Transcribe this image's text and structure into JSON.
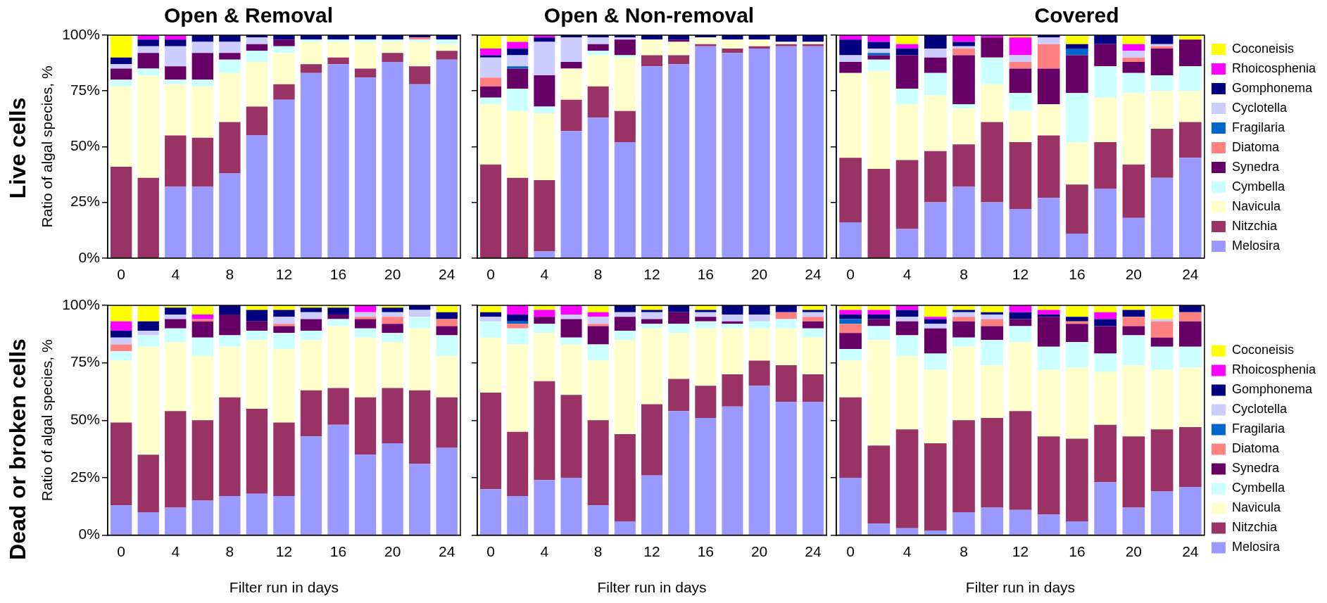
{
  "chart_data": [
    {
      "type": "bar",
      "title": "Open & Removal",
      "ylabel": "Ratio of algal species, %",
      "annotations": [
        "Live cells"
      ],
      "stacked": true,
      "categories": [
        "0",
        null,
        "4",
        null,
        "8",
        null,
        "12",
        null,
        "16",
        null,
        "20",
        null,
        "24"
      ],
      "ylim": [
        0,
        100
      ],
      "yticks": [
        {
          "value": 0,
          "label": "0%"
        },
        {
          "value": 25,
          "label": "25%"
        },
        {
          "value": 50,
          "label": "50%"
        },
        {
          "value": 75,
          "label": "75%"
        },
        {
          "value": 100,
          "label": "100%"
        }
      ],
      "series": [
        {
          "color": "#9999ff",
          "values": [
            0,
            0,
            32,
            32,
            38,
            55,
            71,
            83,
            87,
            81,
            88,
            78,
            89
          ]
        },
        {
          "color": "#993366",
          "values": [
            41,
            36,
            23,
            22,
            23,
            13,
            7,
            4,
            3,
            4,
            4,
            8,
            4
          ]
        },
        {
          "color": "#ffffcc",
          "values": [
            36,
            46,
            23,
            23,
            22,
            20,
            14,
            10,
            7,
            12,
            5,
            11,
            3
          ]
        },
        {
          "color": "#ccffff",
          "values": [
            3,
            3,
            2,
            3,
            6,
            5,
            3,
            1,
            1,
            1,
            1,
            1,
            2
          ]
        },
        {
          "color": "#660066",
          "values": [
            5,
            7,
            6,
            12,
            3,
            3,
            3,
            0,
            0,
            0,
            0,
            0,
            0
          ]
        },
        {
          "color": "#ff8080",
          "values": [
            0,
            0,
            0,
            0,
            0,
            0,
            0,
            0,
            0,
            0,
            0,
            1,
            0
          ]
        },
        {
          "color": "#ccccff",
          "values": [
            2,
            3,
            9,
            5,
            5,
            3,
            0,
            0,
            0,
            0,
            0,
            0,
            0
          ]
        },
        {
          "color": "#000080",
          "values": [
            3,
            3,
            3,
            3,
            3,
            1,
            2,
            2,
            2,
            2,
            2,
            1,
            2
          ]
        },
        {
          "color": "#ff00ff",
          "values": [
            0,
            2,
            2,
            0,
            0,
            0,
            0,
            0,
            0,
            0,
            0,
            0,
            0
          ]
        },
        {
          "color": "#ffff00",
          "values": [
            10,
            0,
            0,
            0,
            0,
            0,
            0,
            0,
            0,
            0,
            0,
            0,
            0
          ]
        }
      ]
    },
    {
      "type": "bar",
      "title": "Open & Non-removal",
      "stacked": true,
      "categories": [
        "0",
        null,
        "4",
        null,
        "8",
        null,
        "12",
        null,
        "16",
        null,
        "20",
        null,
        "24"
      ],
      "ylim": [
        0,
        100
      ],
      "yticks": [
        {
          "value": 0,
          "label": null
        },
        {
          "value": 25,
          "label": null
        },
        {
          "value": 50,
          "label": null
        },
        {
          "value": 75,
          "label": null
        },
        {
          "value": 100,
          "label": null
        }
      ],
      "tick_labels": "x",
      "series": [
        {
          "color": "#9999ff",
          "values": [
            0,
            0,
            3,
            57,
            63,
            52,
            86,
            87,
            95,
            92,
            94,
            95,
            95
          ]
        },
        {
          "color": "#993366",
          "values": [
            42,
            36,
            32,
            14,
            14,
            14,
            5,
            4,
            1,
            2,
            1,
            1,
            1
          ]
        },
        {
          "color": "#ffffcc",
          "values": [
            27,
            30,
            30,
            14,
            14,
            24,
            7,
            6,
            3,
            4,
            3,
            1,
            1
          ]
        },
        {
          "color": "#ccffff",
          "values": [
            3,
            10,
            3,
            0,
            2,
            1,
            0,
            0,
            0,
            0,
            0,
            0,
            0
          ]
        },
        {
          "color": "#660066",
          "values": [
            5,
            9,
            14,
            3,
            3,
            7,
            0,
            1,
            0,
            0,
            0,
            0,
            0
          ]
        },
        {
          "color": "#ff8080",
          "values": [
            4,
            0,
            0,
            0,
            0,
            0,
            0,
            0,
            0,
            0,
            0,
            0,
            0
          ]
        },
        {
          "color": "#0066cc",
          "values": [
            0,
            1,
            0,
            0,
            0,
            0,
            0,
            0,
            0,
            0,
            0,
            0,
            0
          ]
        },
        {
          "color": "#ccccff",
          "values": [
            9,
            5,
            15,
            11,
            3,
            1,
            0,
            0,
            0,
            0,
            0,
            0,
            0
          ]
        },
        {
          "color": "#000080",
          "values": [
            1,
            3,
            2,
            1,
            1,
            1,
            2,
            2,
            1,
            2,
            2,
            3,
            3
          ]
        },
        {
          "color": "#ff00ff",
          "values": [
            3,
            3,
            1,
            0,
            0,
            0,
            0,
            0,
            0,
            0,
            0,
            0,
            0
          ]
        },
        {
          "color": "#ffff00",
          "values": [
            6,
            3,
            0,
            0,
            0,
            0,
            0,
            0,
            0,
            0,
            0,
            0,
            0
          ]
        }
      ]
    },
    {
      "type": "bar",
      "title": "Covered",
      "stacked": true,
      "legend": "right",
      "categories": [
        "0",
        null,
        "4",
        null,
        "8",
        null,
        "12",
        null,
        "16",
        null,
        "20",
        null,
        "24"
      ],
      "ylim": [
        0,
        100
      ],
      "yticks": [
        {
          "value": 0,
          "label": null
        },
        {
          "value": 25,
          "label": null
        },
        {
          "value": 50,
          "label": null
        },
        {
          "value": 75,
          "label": null
        },
        {
          "value": 100,
          "label": null
        }
      ],
      "tick_labels": "x",
      "series": [
        {
          "name": "Melosira",
          "color": "#9999ff",
          "values": [
            16,
            0,
            13,
            25,
            32,
            25,
            22,
            27,
            11,
            31,
            18,
            36,
            45
          ]
        },
        {
          "name": "Nitzchia",
          "color": "#993366",
          "values": [
            29,
            40,
            31,
            23,
            19,
            36,
            30,
            28,
            22,
            21,
            24,
            22,
            16
          ]
        },
        {
          "name": "Navicula",
          "color": "#ffffcc",
          "values": [
            38,
            44,
            25,
            25,
            16,
            17,
            14,
            14,
            19,
            20,
            32,
            17,
            14
          ]
        },
        {
          "name": "Cymbella",
          "color": "#ccffff",
          "values": [
            0,
            5,
            7,
            10,
            2,
            12,
            8,
            0,
            22,
            14,
            9,
            7,
            11
          ]
        },
        {
          "name": "Synedra",
          "color": "#660066",
          "values": [
            5,
            2,
            15,
            7,
            22,
            9,
            11,
            16,
            17,
            10,
            5,
            12,
            12
          ]
        },
        {
          "name": "Diatoma",
          "color": "#ff8080",
          "values": [
            0,
            0,
            0,
            0,
            3,
            0,
            3,
            11,
            0,
            0,
            2,
            1,
            0
          ]
        },
        {
          "name": "Fragilaria",
          "color": "#0066cc",
          "values": [
            0,
            1,
            0,
            0,
            0,
            0,
            0,
            0,
            3,
            0,
            0,
            0,
            0
          ]
        },
        {
          "name": "Cyclotella",
          "color": "#ccccff",
          "values": [
            3,
            2,
            0,
            4,
            1,
            0,
            3,
            3,
            0,
            0,
            3,
            1,
            0
          ]
        },
        {
          "name": "Gomphonema",
          "color": "#000080",
          "values": [
            7,
            3,
            3,
            6,
            2,
            0,
            0,
            1,
            2,
            4,
            0,
            4,
            0
          ]
        },
        {
          "name": "Rhoicosphenia",
          "color": "#ff00ff",
          "values": [
            2,
            3,
            2,
            0,
            3,
            1,
            8,
            0,
            0,
            0,
            3,
            0,
            0
          ]
        },
        {
          "name": "Coconeisis",
          "color": "#ffff00",
          "values": [
            0,
            0,
            4,
            0,
            0,
            0,
            1,
            0,
            4,
            0,
            4,
            0,
            2
          ]
        }
      ]
    },
    {
      "type": "bar",
      "xlabel": "Filter run in days",
      "ylabel": "Ratio of algal species, %",
      "annotations": [
        "Dead or broken cells"
      ],
      "stacked": true,
      "categories": [
        "0",
        null,
        "4",
        null,
        "8",
        null,
        "12",
        null,
        "16",
        null,
        "20",
        null,
        "24"
      ],
      "ylim": [
        0,
        100
      ],
      "yticks": [
        {
          "value": 0,
          "label": "0%"
        },
        {
          "value": 25,
          "label": "25%"
        },
        {
          "value": 50,
          "label": "50%"
        },
        {
          "value": 75,
          "label": "75%"
        },
        {
          "value": 100,
          "label": "100%"
        }
      ],
      "series": [
        {
          "color": "#9999ff",
          "values": [
            13,
            10,
            12,
            15,
            17,
            18,
            17,
            43,
            48,
            35,
            40,
            31,
            38
          ]
        },
        {
          "color": "#993366",
          "values": [
            36,
            25,
            42,
            35,
            43,
            37,
            32,
            20,
            16,
            25,
            24,
            32,
            22
          ]
        },
        {
          "color": "#ffffcc",
          "values": [
            27,
            47,
            30,
            28,
            22,
            30,
            32,
            22,
            27,
            26,
            20,
            27,
            18
          ]
        },
        {
          "color": "#ccffff",
          "values": [
            4,
            5,
            6,
            8,
            5,
            4,
            7,
            4,
            3,
            4,
            4,
            5,
            9
          ]
        },
        {
          "color": "#660066",
          "values": [
            0,
            0,
            4,
            7,
            9,
            4,
            3,
            5,
            2,
            4,
            4,
            0,
            4
          ]
        },
        {
          "color": "#ff8080",
          "values": [
            3,
            0,
            0,
            1,
            0,
            0,
            1,
            0,
            0,
            1,
            3,
            0,
            3
          ]
        },
        {
          "color": "#ccccff",
          "values": [
            3,
            2,
            2,
            0,
            0,
            0,
            3,
            3,
            0,
            2,
            2,
            3,
            0
          ]
        },
        {
          "color": "#000080",
          "values": [
            3,
            4,
            3,
            0,
            4,
            5,
            3,
            2,
            3,
            0,
            2,
            2,
            3
          ]
        },
        {
          "color": "#ff00ff",
          "values": [
            4,
            0,
            0,
            2,
            0,
            0,
            0,
            0,
            0,
            3,
            0,
            0,
            0
          ]
        },
        {
          "color": "#ffff00",
          "values": [
            7,
            7,
            1,
            4,
            0,
            2,
            2,
            1,
            1,
            0,
            1,
            0,
            3
          ]
        }
      ]
    },
    {
      "type": "bar",
      "xlabel": "Filter run in days",
      "stacked": true,
      "categories": [
        "0",
        null,
        "4",
        null,
        "8",
        null,
        "12",
        null,
        "16",
        null,
        "20",
        null,
        "24"
      ],
      "ylim": [
        0,
        100
      ],
      "yticks": [
        {
          "value": 0,
          "label": null
        },
        {
          "value": 25,
          "label": null
        },
        {
          "value": 50,
          "label": null
        },
        {
          "value": 75,
          "label": null
        },
        {
          "value": 100,
          "label": null
        }
      ],
      "tick_labels": "x",
      "series": [
        {
          "color": "#9999ff",
          "values": [
            20,
            17,
            24,
            25,
            13,
            6,
            26,
            54,
            51,
            56,
            65,
            58,
            58
          ]
        },
        {
          "color": "#993366",
          "values": [
            42,
            28,
            43,
            36,
            37,
            38,
            31,
            14,
            14,
            14,
            11,
            16,
            12
          ]
        },
        {
          "color": "#ffffcc",
          "values": [
            24,
            38,
            21,
            22,
            26,
            41,
            33,
            20,
            25,
            20,
            14,
            16,
            16
          ]
        },
        {
          "color": "#ccffff",
          "values": [
            7,
            7,
            4,
            3,
            7,
            4,
            2,
            4,
            3,
            2,
            3,
            4,
            4
          ]
        },
        {
          "color": "#660066",
          "values": [
            0,
            0,
            3,
            8,
            8,
            6,
            2,
            5,
            2,
            1,
            0,
            0,
            3
          ]
        },
        {
          "color": "#ff8080",
          "values": [
            0,
            2,
            0,
            0,
            1,
            0,
            0,
            0,
            0,
            0,
            0,
            3,
            2
          ]
        },
        {
          "color": "#0066cc",
          "values": [
            0,
            1,
            0,
            0,
            0,
            0,
            0,
            0,
            0,
            0,
            0,
            0,
            0
          ]
        },
        {
          "color": "#ccccff",
          "values": [
            2,
            0,
            0,
            2,
            3,
            2,
            3,
            0,
            2,
            3,
            3,
            0,
            2
          ]
        },
        {
          "color": "#000080",
          "values": [
            2,
            3,
            0,
            0,
            0,
            3,
            1,
            3,
            1,
            4,
            4,
            3,
            1
          ]
        },
        {
          "color": "#ff00ff",
          "values": [
            0,
            4,
            3,
            4,
            2,
            0,
            0,
            0,
            0,
            0,
            0,
            0,
            0
          ]
        },
        {
          "color": "#ffff00",
          "values": [
            3,
            0,
            2,
            0,
            3,
            0,
            2,
            0,
            2,
            0,
            0,
            0,
            2
          ]
        }
      ]
    },
    {
      "type": "bar",
      "xlabel": "Filter run in days",
      "stacked": true,
      "legend": "right",
      "categories": [
        "0",
        null,
        "4",
        null,
        "8",
        null,
        "12",
        null,
        "16",
        null,
        "20",
        null,
        "24"
      ],
      "ylim": [
        0,
        100
      ],
      "yticks": [
        {
          "value": 0,
          "label": null
        },
        {
          "value": 25,
          "label": null
        },
        {
          "value": 50,
          "label": null
        },
        {
          "value": 75,
          "label": null
        },
        {
          "value": 100,
          "label": null
        }
      ],
      "tick_labels": "x",
      "series": [
        {
          "name": "Melosira",
          "color": "#9999ff",
          "values": [
            25,
            5,
            3,
            2,
            10,
            12,
            11,
            9,
            6,
            23,
            12,
            19,
            21
          ]
        },
        {
          "name": "Nitzchia",
          "color": "#993366",
          "values": [
            35,
            34,
            43,
            38,
            40,
            39,
            43,
            34,
            36,
            25,
            31,
            27,
            26
          ]
        },
        {
          "name": "Navicula",
          "color": "#ffffcc",
          "values": [
            16,
            46,
            32,
            32,
            32,
            23,
            30,
            29,
            31,
            23,
            31,
            26,
            26
          ]
        },
        {
          "name": "Cymbella",
          "color": "#ccffff",
          "values": [
            5,
            6,
            9,
            7,
            4,
            11,
            7,
            10,
            11,
            8,
            13,
            10,
            9
          ]
        },
        {
          "name": "Synedra",
          "color": "#660066",
          "values": [
            7,
            3,
            6,
            11,
            7,
            6,
            3,
            13,
            8,
            12,
            4,
            4,
            11
          ]
        },
        {
          "name": "Diatoma",
          "color": "#ff8080",
          "values": [
            4,
            0,
            0,
            0,
            2,
            3,
            0,
            0,
            1,
            0,
            4,
            7,
            4
          ]
        },
        {
          "name": "Fragilaria",
          "color": "#0066cc",
          "values": [
            2,
            0,
            0,
            0,
            0,
            0,
            0,
            0,
            0,
            0,
            0,
            0,
            0
          ]
        },
        {
          "name": "Cyclotella",
          "color": "#ccccff",
          "values": [
            0,
            0,
            2,
            2,
            2,
            2,
            0,
            0,
            0,
            0,
            0,
            1,
            0
          ]
        },
        {
          "name": "Gomphonema",
          "color": "#000080",
          "values": [
            2,
            2,
            3,
            2,
            1,
            1,
            3,
            1,
            2,
            3,
            3,
            0,
            3
          ]
        },
        {
          "name": "Rhoicosphenia",
          "color": "#ff00ff",
          "values": [
            2,
            2,
            2,
            1,
            0,
            0,
            3,
            2,
            0,
            3,
            0,
            0,
            0
          ]
        },
        {
          "name": "Coconeisis",
          "color": "#ffff00",
          "values": [
            2,
            2,
            0,
            5,
            2,
            3,
            0,
            2,
            5,
            3,
            2,
            6,
            0
          ]
        }
      ]
    }
  ]
}
